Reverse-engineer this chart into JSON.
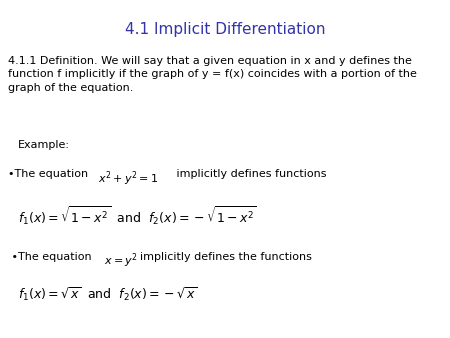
{
  "title": "4.1 Implicit Differentiation",
  "title_color": "#3333AA",
  "title_fontsize": 11,
  "bg_color": "#ffffff",
  "definition_text": "4.1.1 Definition. We will say that a given equation in x and y defines the\nfunction f implicitly if the graph of y = f(x) coincides with a portion of the\ngraph of the equation.",
  "definition_fontsize": 8.0,
  "example_label": "Example:",
  "example_fontsize": 8.0,
  "bullet1_prefix": "•The equation ",
  "bullet1_eq": "$x^2 + y^2 = 1$",
  "bullet1_suffix": "   implicitly defines functions",
  "formula1": "$f_1(x) = \\sqrt{1 - x^2}$  and  $f_2(x) = -\\sqrt{1 - x^2}$",
  "bullet2_prefix": " •The equation ",
  "bullet2_eq": "$x = y^2$",
  "bullet2_suffix": "  implicitly defines the functions",
  "formula2": "$f_1(x) = \\sqrt{x}$  and  $f_2(x) = -\\sqrt{x}$",
  "text_color": "#000000",
  "formula_fontsize": 9.0,
  "bullet_fontsize": 8.0
}
